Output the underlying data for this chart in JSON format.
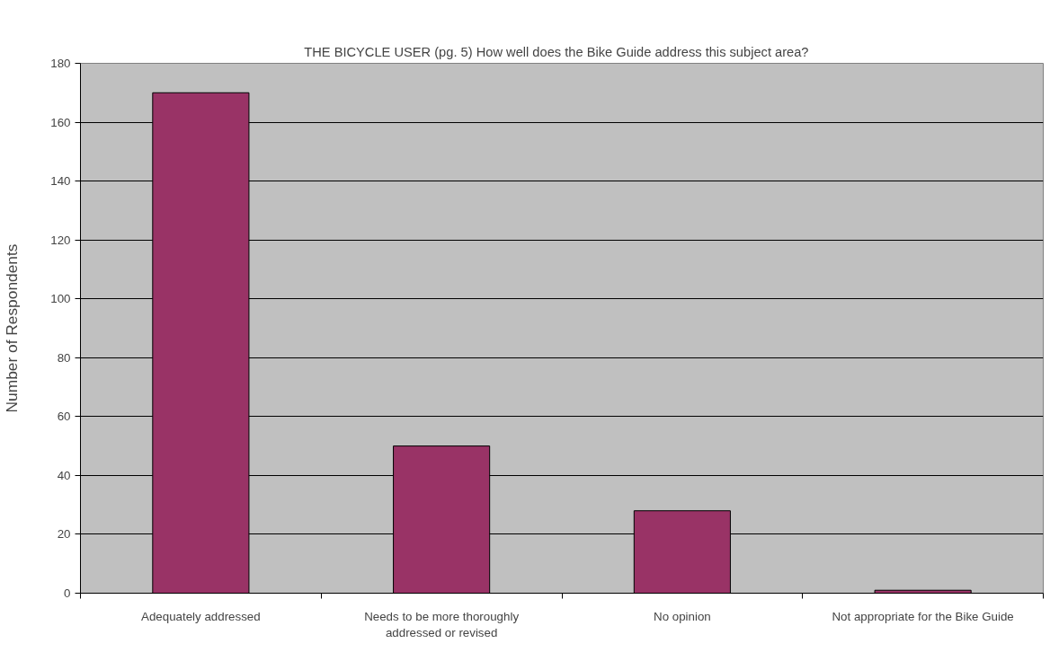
{
  "chart_data": {
    "type": "bar",
    "title": "THE BICYCLE USER (pg. 5)    How well does the Bike Guide address this subject area?",
    "ylabel": "Number of Respondents",
    "categories": [
      "Adequately addressed",
      "Needs to be more thoroughly addressed or revised",
      "No opinion",
      "Not appropriate for the Bike Guide"
    ],
    "values": [
      170,
      50,
      28,
      1
    ],
    "color": "#993366",
    "ylim": [
      0,
      180
    ],
    "yticks": [
      0,
      20,
      40,
      60,
      80,
      100,
      120,
      140,
      160,
      180
    ],
    "grid": "y"
  }
}
